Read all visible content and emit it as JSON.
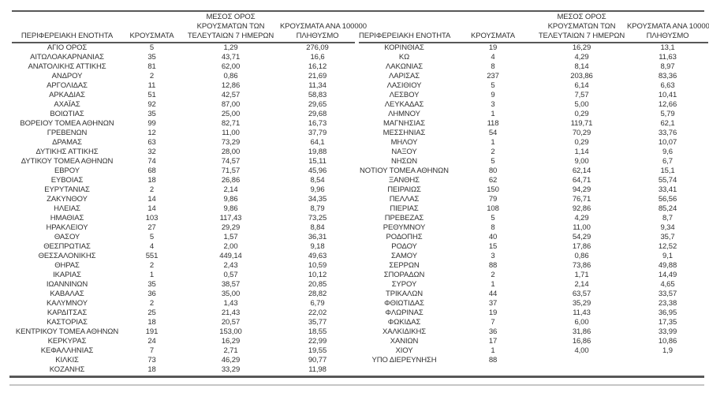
{
  "colors": {
    "background": "#ffffff",
    "text": "#303030",
    "rule_dark": "#585858",
    "rule_light": "#c6c6c6"
  },
  "headers": {
    "region": "ΠΕΡΙΦΕΡΕΙΑΚΗ ΕΝΟΤΗΤΑ",
    "cases": "ΚΡΟΥΣΜΑΤΑ",
    "avg7_line1": "ΜΕΣΟΣ ΟΡΟΣ",
    "avg7_line2": "ΚΡΟΥΣΜΑΤΩΝ ΤΩΝ",
    "avg7_line3": "ΤΕΛΕΥΤΑΙΩΝ 7 ΗΜΕΡΩΝ",
    "per100k_line1": "ΚΡΟΥΣΜΑΤΑ ΑΝΑ 100000",
    "per100k_line2": "ΠΛΗΘΥΣΜΟ"
  },
  "left_table": {
    "rows": [
      [
        "ΑΓΙΟ ΟΡΟΣ",
        "5",
        "1,29",
        "276,09"
      ],
      [
        "ΑΙΤΩΛΟΑΚΑΡΝΑΝΙΑΣ",
        "35",
        "43,71",
        "16,6"
      ],
      [
        "ΑΝΑΤΟΛΙΚΗΣ ΑΤΤΙΚΗΣ",
        "81",
        "62,00",
        "16,12"
      ],
      [
        "ΑΝΔΡΟΥ",
        "2",
        "0,86",
        "21,69"
      ],
      [
        "ΑΡΓΟΛΙΔΑΣ",
        "11",
        "12,86",
        "11,34"
      ],
      [
        "ΑΡΚΑΔΙΑΣ",
        "51",
        "42,57",
        "58,83"
      ],
      [
        "ΑΧΑΪΑΣ",
        "92",
        "87,00",
        "29,65"
      ],
      [
        "ΒΟΙΩΤΙΑΣ",
        "35",
        "25,00",
        "29,68"
      ],
      [
        "ΒΟΡΕΙΟΥ ΤΟΜΕΑ ΑΘΗΝΩΝ",
        "99",
        "82,71",
        "16,73"
      ],
      [
        "ΓΡΕΒΕΝΩΝ",
        "12",
        "11,00",
        "37,79"
      ],
      [
        "ΔΡΑΜΑΣ",
        "63",
        "73,29",
        "64,1"
      ],
      [
        "ΔΥΤΙΚΗΣ ΑΤΤΙΚΗΣ",
        "32",
        "28,00",
        "19,88"
      ],
      [
        "ΔΥΤΙΚΟΥ ΤΟΜΕΑ ΑΘΗΝΩΝ",
        "74",
        "74,57",
        "15,11"
      ],
      [
        "ΕΒΡΟΥ",
        "68",
        "71,57",
        "45,96"
      ],
      [
        "ΕΥΒΟΙΑΣ",
        "18",
        "26,86",
        "8,54"
      ],
      [
        "ΕΥΡΥΤΑΝΙΑΣ",
        "2",
        "2,14",
        "9,96"
      ],
      [
        "ΖΑΚΥΝΘΟΥ",
        "14",
        "9,86",
        "34,35"
      ],
      [
        "ΗΛΕΙΑΣ",
        "14",
        "9,86",
        "8,79"
      ],
      [
        "ΗΜΑΘΙΑΣ",
        "103",
        "117,43",
        "73,25"
      ],
      [
        "ΗΡΑΚΛΕΙΟΥ",
        "27",
        "29,29",
        "8,84"
      ],
      [
        "ΘΑΣΟΥ",
        "5",
        "1,57",
        "36,31"
      ],
      [
        "ΘΕΣΠΡΩΤΙΑΣ",
        "4",
        "2,00",
        "9,18"
      ],
      [
        "ΘΕΣΣΑΛΟΝΙΚΗΣ",
        "551",
        "449,14",
        "49,63"
      ],
      [
        "ΘΗΡΑΣ",
        "2",
        "2,43",
        "10,59"
      ],
      [
        "ΙΚΑΡΙΑΣ",
        "1",
        "0,57",
        "10,12"
      ],
      [
        "ΙΩΑΝΝΙΝΩΝ",
        "35",
        "38,57",
        "20,85"
      ],
      [
        "ΚΑΒΑΛΑΣ",
        "36",
        "35,00",
        "28,82"
      ],
      [
        "ΚΑΛΥΜΝΟΥ",
        "2",
        "1,43",
        "6,79"
      ],
      [
        "ΚΑΡΔΙΤΣΑΣ",
        "25",
        "21,43",
        "22,02"
      ],
      [
        "ΚΑΣΤΟΡΙΑΣ",
        "18",
        "20,57",
        "35,77"
      ],
      [
        "ΚΕΝΤΡΙΚΟΥ ΤΟΜΕΑ ΑΘΗΝΩΝ",
        "191",
        "153,00",
        "18,55"
      ],
      [
        "ΚΕΡΚΥΡΑΣ",
        "24",
        "16,29",
        "22,99"
      ],
      [
        "ΚΕΦΑΛΛΗΝΙΑΣ",
        "7",
        "2,71",
        "19,55"
      ],
      [
        "ΚΙΛΚΙΣ",
        "73",
        "46,29",
        "90,77"
      ],
      [
        "ΚΟΖΑΝΗΣ",
        "18",
        "33,29",
        "11,98"
      ]
    ]
  },
  "right_table": {
    "rows": [
      [
        "ΚΟΡΙΝΘΙΑΣ",
        "19",
        "16,29",
        "13,1"
      ],
      [
        "ΚΩ",
        "4",
        "4,29",
        "11,63"
      ],
      [
        "ΛΑΚΩΝΙΑΣ",
        "8",
        "8,14",
        "8,97"
      ],
      [
        "ΛΑΡΙΣΑΣ",
        "237",
        "203,86",
        "83,36"
      ],
      [
        "ΛΑΣΙΘΙΟΥ",
        "5",
        "6,14",
        "6,63"
      ],
      [
        "ΛΕΣΒΟΥ",
        "9",
        "7,57",
        "10,41"
      ],
      [
        "ΛΕΥΚΑΔΑΣ",
        "3",
        "5,00",
        "12,66"
      ],
      [
        "ΛΗΜΝΟΥ",
        "1",
        "0,29",
        "5,79"
      ],
      [
        "ΜΑΓΝΗΣΙΑΣ",
        "118",
        "119,71",
        "62,1"
      ],
      [
        "ΜΕΣΣΗΝΙΑΣ",
        "54",
        "70,29",
        "33,76"
      ],
      [
        "ΜΗΛΟΥ",
        "1",
        "0,29",
        "10,07"
      ],
      [
        "ΝΑΞΟΥ",
        "2",
        "1,14",
        "9,6"
      ],
      [
        "ΝΗΣΩΝ",
        "5",
        "9,00",
        "6,7"
      ],
      [
        "ΝΟΤΙΟΥ ΤΟΜΕΑ ΑΘΗΝΩΝ",
        "80",
        "62,14",
        "15,1"
      ],
      [
        "ΞΑΝΘΗΣ",
        "62",
        "64,71",
        "55,74"
      ],
      [
        "ΠΕΙΡΑΙΩΣ",
        "150",
        "94,29",
        "33,41"
      ],
      [
        "ΠΕΛΛΑΣ",
        "79",
        "76,71",
        "56,56"
      ],
      [
        "ΠΙΕΡΙΑΣ",
        "108",
        "92,86",
        "85,24"
      ],
      [
        "ΠΡΕΒΕΖΑΣ",
        "5",
        "4,29",
        "8,7"
      ],
      [
        "ΡΕΘΥΜΝΟΥ",
        "8",
        "11,00",
        "9,34"
      ],
      [
        "ΡΟΔΟΠΗΣ",
        "40",
        "54,29",
        "35,7"
      ],
      [
        "ΡΟΔΟΥ",
        "15",
        "17,86",
        "12,52"
      ],
      [
        "ΣΑΜΟΥ",
        "3",
        "0,86",
        "9,1"
      ],
      [
        "ΣΕΡΡΩΝ",
        "88",
        "73,86",
        "49,88"
      ],
      [
        "ΣΠΟΡΑΔΩΝ",
        "2",
        "1,71",
        "14,49"
      ],
      [
        "ΣΥΡΟΥ",
        "1",
        "2,14",
        "4,65"
      ],
      [
        "ΤΡΙΚΑΛΩΝ",
        "44",
        "63,57",
        "33,57"
      ],
      [
        "ΦΘΙΩΤΙΔΑΣ",
        "37",
        "35,29",
        "23,38"
      ],
      [
        "ΦΛΩΡΙΝΑΣ",
        "19",
        "11,43",
        "36,95"
      ],
      [
        "ΦΩΚΙΔΑΣ",
        "7",
        "6,00",
        "17,35"
      ],
      [
        "ΧΑΛΚΙΔΙΚΗΣ",
        "36",
        "31,86",
        "33,99"
      ],
      [
        "ΧΑΝΙΩΝ",
        "17",
        "16,86",
        "10,86"
      ],
      [
        "ΧΙΟΥ",
        "1",
        "4,00",
        "1,9"
      ],
      [
        "ΥΠΟ ΔΙΕΡΕΥΝΗΣΗ",
        "88",
        "",
        ""
      ]
    ]
  }
}
